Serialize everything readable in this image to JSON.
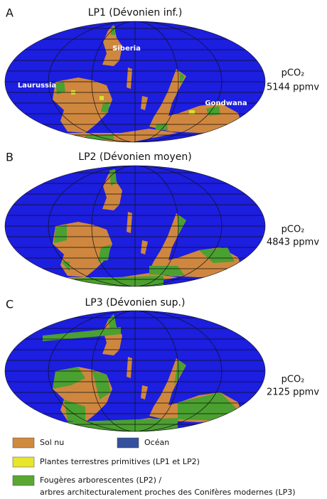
{
  "panels": [
    {
      "letter": "A",
      "title": "LP1 (Dévonien inf.)",
      "pco2_label": "pCO₂",
      "pco2_value": "5144 ppmv",
      "regions": [
        "Siberia",
        "Laurussia",
        "Gondwana"
      ]
    },
    {
      "letter": "B",
      "title": "LP2 (Dévonien moyen)",
      "pco2_label": "pCO₂",
      "pco2_value": "4843 ppmv"
    },
    {
      "letter": "C",
      "title": "LP3 (Dévonien sup.)",
      "pco2_label": "pCO₂",
      "pco2_value": "2125 ppmv"
    }
  ],
  "legend": [
    {
      "label": "Sol nu",
      "color": "#d08a3e"
    },
    {
      "label": "Océan",
      "color": "#34509e"
    },
    {
      "label": "Plantes terrestres primitives (LP1 et LP2)",
      "color": "#e8e62a"
    },
    {
      "label": "Fougères arborescentes (LP2) /",
      "label2": "arbres architecturalement proches des Conifères modernes (LP3)",
      "color": "#5aa832"
    }
  ]
}
